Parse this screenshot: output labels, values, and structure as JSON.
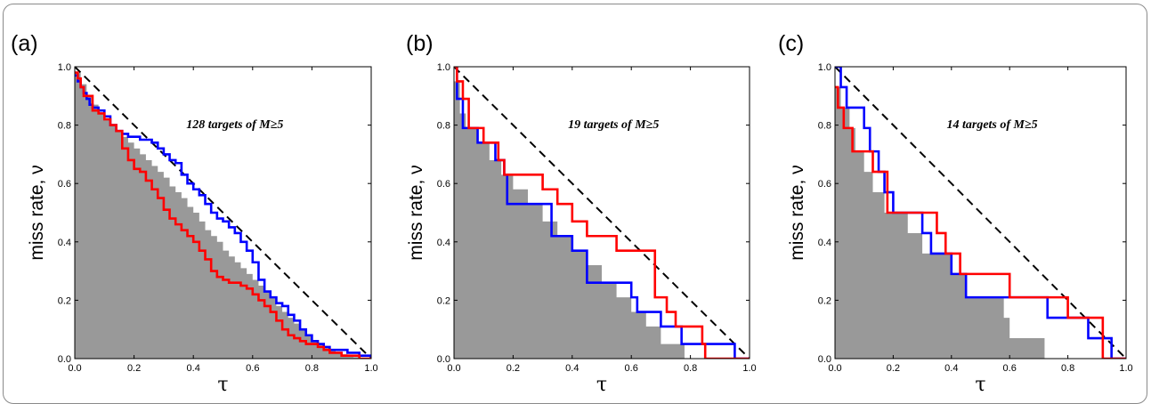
{
  "chart_data": [
    {
      "type": "line",
      "panel_label": "(a)",
      "xlabel": "τ",
      "ylabel": "miss rate, ν",
      "xlim": [
        0,
        1
      ],
      "ylim": [
        0,
        1
      ],
      "xticks": [
        "0.0",
        "0.2",
        "0.4",
        "0.6",
        "0.8",
        "1.0"
      ],
      "yticks": [
        "0.0",
        "0.2",
        "0.4",
        "0.6",
        "0.8",
        "1.0"
      ],
      "annotation": "128 targets of M≥5",
      "grid": false,
      "diagonal": {
        "style": "dashed",
        "color": "#000000",
        "x": [
          0,
          1
        ],
        "y": [
          1,
          0
        ]
      },
      "shaded_area": {
        "color": "#999999",
        "x": [
          0,
          0.02,
          0.04,
          0.06,
          0.08,
          0.1,
          0.12,
          0.14,
          0.16,
          0.18,
          0.2,
          0.22,
          0.24,
          0.26,
          0.28,
          0.3,
          0.32,
          0.34,
          0.36,
          0.38,
          0.4,
          0.42,
          0.44,
          0.46,
          0.48,
          0.5,
          0.52,
          0.54,
          0.56,
          0.58,
          0.6,
          0.62,
          0.64,
          0.66,
          0.68,
          0.7,
          0.72,
          0.74,
          0.76,
          0.78,
          0.8,
          0.82,
          0.84,
          0.86,
          0.88,
          0.9,
          0.92,
          0.94,
          0.96,
          0.98,
          1.0
        ],
        "y": [
          0.98,
          0.94,
          0.9,
          0.87,
          0.84,
          0.82,
          0.8,
          0.78,
          0.76,
          0.74,
          0.72,
          0.7,
          0.68,
          0.66,
          0.64,
          0.62,
          0.59,
          0.57,
          0.55,
          0.52,
          0.5,
          0.47,
          0.44,
          0.42,
          0.4,
          0.37,
          0.35,
          0.33,
          0.31,
          0.29,
          0.27,
          0.25,
          0.23,
          0.21,
          0.18,
          0.16,
          0.14,
          0.12,
          0.1,
          0.08,
          0.06,
          0.05,
          0.04,
          0.03,
          0.02,
          0.015,
          0.01,
          0.005,
          0.0,
          0.0,
          0.0
        ]
      },
      "series": [
        {
          "color": "#0000ff",
          "x": [
            0,
            0.01,
            0.02,
            0.03,
            0.04,
            0.05,
            0.06,
            0.08,
            0.1,
            0.12,
            0.14,
            0.16,
            0.18,
            0.2,
            0.22,
            0.24,
            0.26,
            0.28,
            0.3,
            0.32,
            0.34,
            0.36,
            0.38,
            0.4,
            0.42,
            0.44,
            0.46,
            0.48,
            0.5,
            0.52,
            0.54,
            0.56,
            0.58,
            0.6,
            0.62,
            0.64,
            0.66,
            0.68,
            0.7,
            0.72,
            0.74,
            0.76,
            0.78,
            0.8,
            0.82,
            0.84,
            0.86,
            0.88,
            0.9,
            0.92,
            0.94,
            0.96,
            0.98,
            1.0
          ],
          "y": [
            0.97,
            0.95,
            0.93,
            0.91,
            0.89,
            0.87,
            0.86,
            0.85,
            0.83,
            0.8,
            0.78,
            0.77,
            0.76,
            0.76,
            0.75,
            0.75,
            0.74,
            0.72,
            0.7,
            0.68,
            0.67,
            0.63,
            0.6,
            0.58,
            0.56,
            0.53,
            0.5,
            0.48,
            0.47,
            0.45,
            0.43,
            0.4,
            0.37,
            0.33,
            0.27,
            0.23,
            0.21,
            0.19,
            0.18,
            0.15,
            0.13,
            0.1,
            0.08,
            0.06,
            0.05,
            0.04,
            0.03,
            0.03,
            0.03,
            0.02,
            0.02,
            0.01,
            0.01,
            0.0
          ]
        },
        {
          "color": "#ff0000",
          "x": [
            0,
            0.01,
            0.02,
            0.03,
            0.05,
            0.06,
            0.08,
            0.1,
            0.12,
            0.14,
            0.16,
            0.18,
            0.2,
            0.22,
            0.24,
            0.26,
            0.28,
            0.3,
            0.32,
            0.34,
            0.36,
            0.38,
            0.4,
            0.42,
            0.44,
            0.46,
            0.48,
            0.5,
            0.52,
            0.54,
            0.56,
            0.58,
            0.6,
            0.62,
            0.64,
            0.66,
            0.68,
            0.7,
            0.72,
            0.74,
            0.76,
            0.78,
            0.8,
            0.82,
            0.84,
            0.86,
            0.88,
            0.9,
            0.92,
            0.94,
            0.96,
            0.98,
            1.0
          ],
          "y": [
            0.98,
            0.96,
            0.93,
            0.9,
            0.9,
            0.85,
            0.84,
            0.82,
            0.8,
            0.78,
            0.72,
            0.68,
            0.65,
            0.64,
            0.61,
            0.58,
            0.55,
            0.51,
            0.48,
            0.46,
            0.44,
            0.42,
            0.4,
            0.37,
            0.34,
            0.3,
            0.28,
            0.27,
            0.26,
            0.26,
            0.25,
            0.24,
            0.22,
            0.2,
            0.18,
            0.16,
            0.13,
            0.1,
            0.08,
            0.07,
            0.06,
            0.05,
            0.05,
            0.04,
            0.03,
            0.02,
            0.02,
            0.01,
            0.01,
            0.01,
            0.0,
            0.0,
            0.0
          ]
        }
      ]
    },
    {
      "type": "line",
      "panel_label": "(b)",
      "xlabel": "τ",
      "ylabel": "miss rate, ν",
      "xlim": [
        0,
        1
      ],
      "ylim": [
        0,
        1
      ],
      "xticks": [
        "0.0",
        "0.2",
        "0.4",
        "0.6",
        "0.8",
        "1.0"
      ],
      "yticks": [
        "0.0",
        "0.2",
        "0.4",
        "0.6",
        "0.8",
        "1.0"
      ],
      "annotation": "19 targets of M≥5",
      "grid": false,
      "diagonal": {
        "style": "dashed",
        "color": "#000000",
        "x": [
          0,
          1
        ],
        "y": [
          1,
          0
        ]
      },
      "shaded_area": {
        "color": "#999999",
        "x": [
          0,
          0.02,
          0.04,
          0.08,
          0.12,
          0.16,
          0.2,
          0.25,
          0.3,
          0.35,
          0.4,
          0.45,
          0.5,
          0.55,
          0.6,
          0.65,
          0.7,
          0.75,
          0.78,
          1.0
        ],
        "y": [
          0.95,
          0.84,
          0.79,
          0.74,
          0.68,
          0.63,
          0.58,
          0.53,
          0.47,
          0.42,
          0.37,
          0.32,
          0.26,
          0.21,
          0.16,
          0.11,
          0.05,
          0.05,
          0.0,
          0.0
        ]
      },
      "series": [
        {
          "color": "#0000ff",
          "x": [
            0,
            0.01,
            0.03,
            0.05,
            0.08,
            0.1,
            0.14,
            0.17,
            0.18,
            0.3,
            0.33,
            0.4,
            0.45,
            0.55,
            0.6,
            0.62,
            0.65,
            0.7,
            0.77,
            0.82,
            0.95,
            1.0
          ],
          "y": [
            1.0,
            0.89,
            0.79,
            0.79,
            0.74,
            0.74,
            0.68,
            0.63,
            0.53,
            0.53,
            0.42,
            0.37,
            0.26,
            0.26,
            0.21,
            0.16,
            0.16,
            0.11,
            0.05,
            0.05,
            0.0,
            0.0
          ]
        },
        {
          "color": "#ff0000",
          "x": [
            0,
            0.01,
            0.03,
            0.05,
            0.08,
            0.1,
            0.15,
            0.17,
            0.28,
            0.3,
            0.35,
            0.4,
            0.45,
            0.5,
            0.55,
            0.67,
            0.68,
            0.72,
            0.75,
            0.84,
            0.85,
            0.95,
            1.0
          ],
          "y": [
            1.0,
            0.95,
            0.89,
            0.79,
            0.79,
            0.74,
            0.68,
            0.63,
            0.63,
            0.58,
            0.53,
            0.47,
            0.42,
            0.42,
            0.37,
            0.37,
            0.21,
            0.16,
            0.11,
            0.05,
            0.0,
            0.0,
            0.0
          ]
        }
      ]
    },
    {
      "type": "line",
      "panel_label": "(c)",
      "xlabel": "τ",
      "ylabel": "miss rate, ν",
      "xlim": [
        0,
        1
      ],
      "ylim": [
        0,
        1
      ],
      "xticks": [
        "0.0",
        "0.2",
        "0.4",
        "0.6",
        "0.8",
        "1.0"
      ],
      "yticks": [
        "0.0",
        "0.2",
        "0.4",
        "0.6",
        "0.8",
        "1.0"
      ],
      "annotation": "14 targets of M≥5",
      "grid": false,
      "diagonal": {
        "style": "dashed",
        "color": "#000000",
        "x": [
          0,
          1
        ],
        "y": [
          1,
          0
        ]
      },
      "shaded_area": {
        "color": "#999999",
        "x": [
          0,
          0.02,
          0.05,
          0.07,
          0.1,
          0.13,
          0.17,
          0.2,
          0.25,
          0.3,
          0.35,
          0.4,
          0.45,
          0.5,
          0.58,
          0.6,
          0.72,
          1.0
        ],
        "y": [
          0.93,
          0.86,
          0.79,
          0.71,
          0.64,
          0.57,
          0.5,
          0.5,
          0.43,
          0.36,
          0.36,
          0.29,
          0.21,
          0.21,
          0.14,
          0.07,
          0.0,
          0.0
        ]
      },
      "series": [
        {
          "color": "#0000ff",
          "x": [
            0,
            0.02,
            0.04,
            0.07,
            0.1,
            0.12,
            0.15,
            0.17,
            0.2,
            0.3,
            0.33,
            0.4,
            0.45,
            0.55,
            0.6,
            0.67,
            0.73,
            0.84,
            0.87,
            0.93,
            0.95,
            1.0
          ],
          "y": [
            1.0,
            0.93,
            0.86,
            0.86,
            0.79,
            0.71,
            0.64,
            0.57,
            0.5,
            0.43,
            0.36,
            0.29,
            0.21,
            0.21,
            0.21,
            0.21,
            0.14,
            0.14,
            0.07,
            0.07,
            0.0,
            0.0
          ]
        },
        {
          "color": "#ff0000",
          "x": [
            0,
            0.01,
            0.03,
            0.06,
            0.1,
            0.13,
            0.18,
            0.2,
            0.3,
            0.35,
            0.38,
            0.43,
            0.48,
            0.55,
            0.6,
            0.7,
            0.75,
            0.8,
            0.9,
            0.92,
            1.0
          ],
          "y": [
            0.93,
            0.86,
            0.79,
            0.71,
            0.71,
            0.64,
            0.5,
            0.5,
            0.5,
            0.43,
            0.36,
            0.29,
            0.29,
            0.29,
            0.21,
            0.21,
            0.21,
            0.14,
            0.14,
            0.0,
            0.0
          ]
        }
      ]
    }
  ]
}
